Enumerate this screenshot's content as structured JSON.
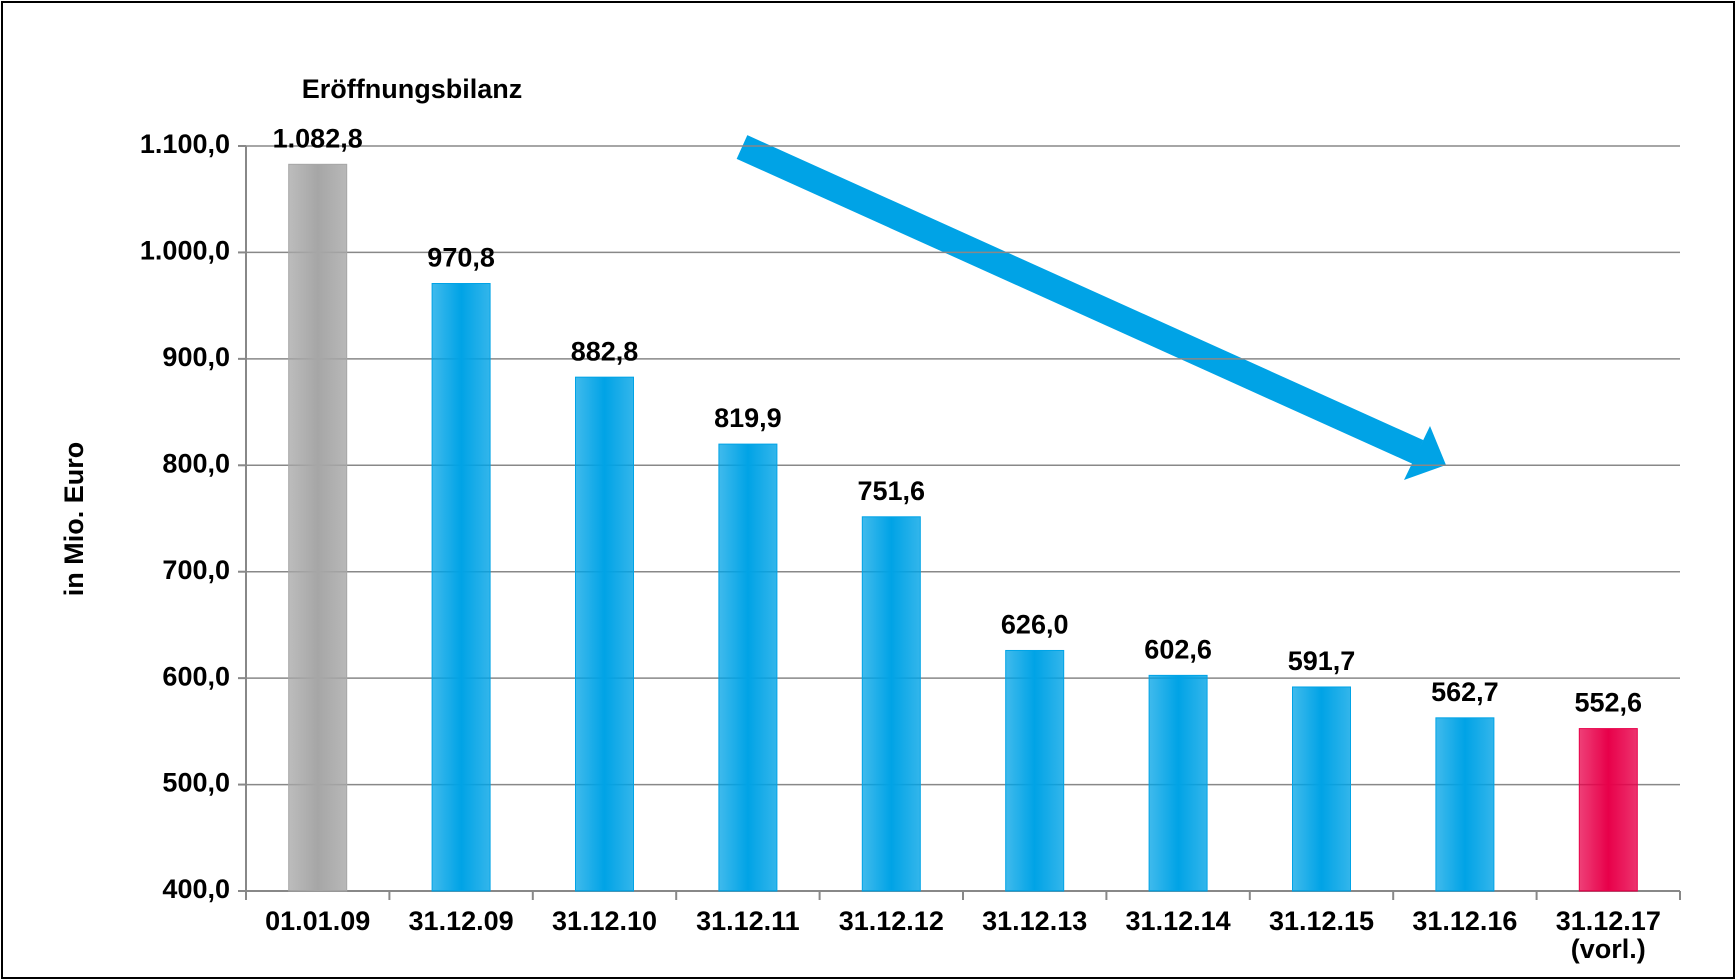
{
  "chart_data": {
    "type": "bar",
    "y_label": "in Mio. Euro",
    "annotation": "Eröffnungsbilanz",
    "categories": [
      "01.01.09",
      "31.12.09",
      "31.12.10",
      "31.12.11",
      "31.12.12",
      "31.12.13",
      "31.12.14",
      "31.12.15",
      "31.12.16",
      "31.12.17\n(vorl.)"
    ],
    "values": [
      1082.8,
      970.8,
      882.8,
      819.9,
      751.6,
      626.0,
      602.6,
      591.7,
      562.7,
      552.6
    ],
    "value_labels": [
      "1.082,8",
      "970,8",
      "882,8",
      "819,9",
      "751,6",
      "626,0",
      "602,6",
      "591,7",
      "562,7",
      "552,6"
    ],
    "colors": [
      "#a6a6a6",
      "#00a3e6",
      "#00a3e6",
      "#00a3e6",
      "#00a3e6",
      "#00a3e6",
      "#00a3e6",
      "#00a3e6",
      "#00a3e6",
      "#e8004a"
    ],
    "ylim": [
      400,
      1100
    ],
    "yticks": [
      {
        "value": 400,
        "label": "400,0"
      },
      {
        "value": 500,
        "label": "500,0"
      },
      {
        "value": 600,
        "label": "600,0"
      },
      {
        "value": 700,
        "label": "700,0"
      },
      {
        "value": 800,
        "label": "800,0"
      },
      {
        "value": 900,
        "label": "900,0"
      },
      {
        "value": 1000,
        "label": "1.000,0"
      },
      {
        "value": 1100,
        "label": "1.100,0"
      }
    ],
    "grid": true
  }
}
